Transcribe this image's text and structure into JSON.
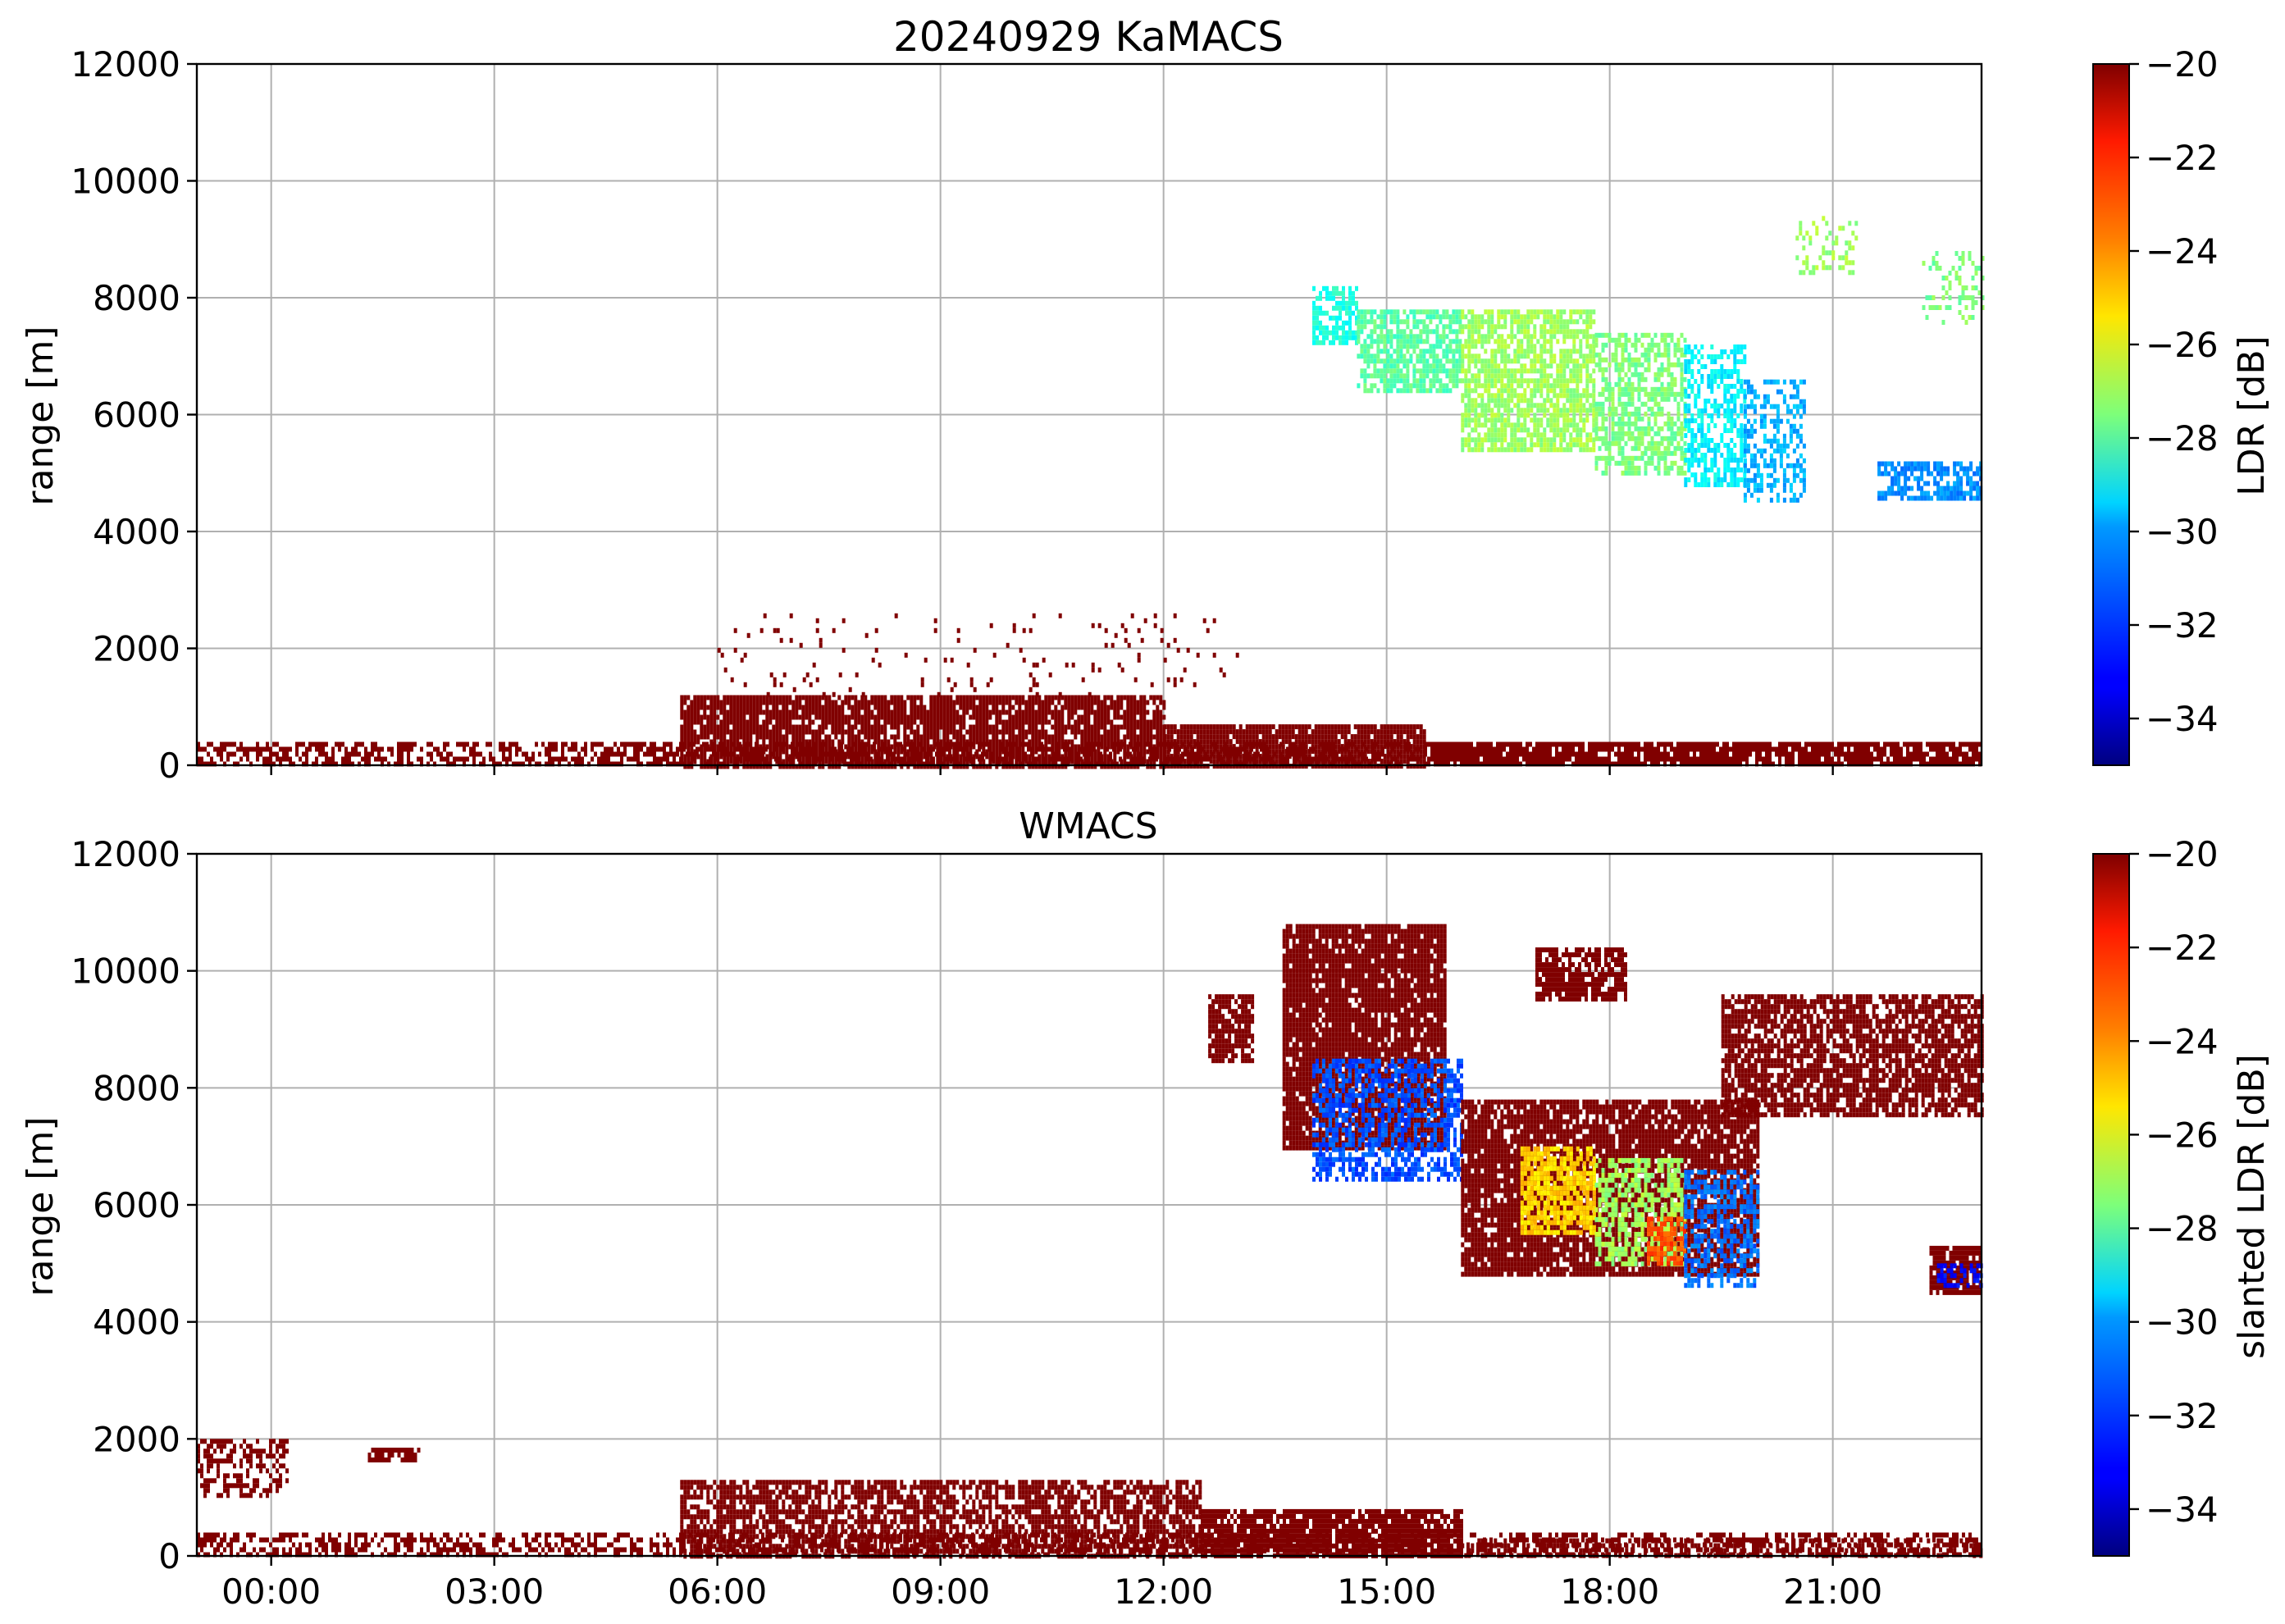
{
  "chart_data": [
    {
      "type": "heatmap",
      "title": "20240929 KaMACS",
      "xlabel": "",
      "ylabel": "range [m]",
      "xlim": [
        "00:00",
        "24:00"
      ],
      "ylim": [
        0,
        12000
      ],
      "grid": true,
      "x_tick_labels": [],
      "y_ticks": [
        0,
        2000,
        4000,
        6000,
        8000,
        10000,
        12000
      ],
      "colorbar": {
        "label": "LDR [dB]",
        "range": [
          -35,
          -20
        ],
        "ticks": [
          -20,
          -22,
          -24,
          -26,
          -28,
          -30,
          -32,
          -34
        ],
        "tick_labels": [
          "−20",
          "−22",
          "−24",
          "−26",
          "−28",
          "−30",
          "−32",
          "−34"
        ],
        "colormap": "jet"
      },
      "regions": [
        {
          "t0": 0.0,
          "t1": 24.0,
          "h0": 0,
          "h1": 400,
          "ldr": -20,
          "density": 0.55
        },
        {
          "t0": 6.5,
          "t1": 13.0,
          "h0": 0,
          "h1": 1200,
          "ldr": -20,
          "density": 0.85
        },
        {
          "t0": 13.0,
          "t1": 16.5,
          "h0": 0,
          "h1": 700,
          "ldr": -20,
          "density": 0.9
        },
        {
          "t0": 16.5,
          "t1": 24.0,
          "h0": 0,
          "h1": 400,
          "ldr": -20,
          "density": 0.7
        },
        {
          "t0": 7.0,
          "t1": 14.0,
          "h0": 1200,
          "h1": 2600,
          "ldr": -20,
          "density": 0.05
        },
        {
          "t0": 15.0,
          "t1": 15.6,
          "h0": 7200,
          "h1": 8200,
          "ldr": -29,
          "density": 0.7
        },
        {
          "t0": 15.6,
          "t1": 17.0,
          "h0": 6400,
          "h1": 7800,
          "ldr": -28,
          "density": 0.7
        },
        {
          "t0": 17.0,
          "t1": 18.8,
          "h0": 5400,
          "h1": 7800,
          "ldr": -27,
          "density": 0.75
        },
        {
          "t0": 18.8,
          "t1": 20.0,
          "h0": 5000,
          "h1": 7400,
          "ldr": -27.5,
          "density": 0.6
        },
        {
          "t0": 20.0,
          "t1": 20.8,
          "h0": 4800,
          "h1": 7200,
          "ldr": -29.5,
          "density": 0.55
        },
        {
          "t0": 20.8,
          "t1": 21.6,
          "h0": 4500,
          "h1": 6600,
          "ldr": -30.5,
          "density": 0.5
        },
        {
          "t0": 22.6,
          "t1": 24.0,
          "h0": 4600,
          "h1": 5200,
          "ldr": -31,
          "density": 0.7
        },
        {
          "t0": 21.5,
          "t1": 22.3,
          "h0": 8400,
          "h1": 9400,
          "ldr": -27,
          "density": 0.3
        },
        {
          "t0": 23.2,
          "t1": 24.0,
          "h0": 7600,
          "h1": 8800,
          "ldr": -27.5,
          "density": 0.2
        }
      ]
    },
    {
      "type": "heatmap",
      "title": "WMACS",
      "xlabel": "",
      "ylabel": "range [m]",
      "xlim": [
        "00:00",
        "24:00"
      ],
      "ylim": [
        0,
        12000
      ],
      "grid": true,
      "x_tick_labels": [
        "00:00",
        "03:00",
        "06:00",
        "09:00",
        "12:00",
        "15:00",
        "18:00",
        "21:00"
      ],
      "y_ticks": [
        0,
        2000,
        4000,
        6000,
        8000,
        10000,
        12000
      ],
      "colorbar": {
        "label": "slanted LDR [dB]",
        "range": [
          -35,
          -20
        ],
        "ticks": [
          -20,
          -22,
          -24,
          -26,
          -28,
          -30,
          -32,
          -34
        ],
        "tick_labels": [
          "−20",
          "−22",
          "−24",
          "−26",
          "−28",
          "−30",
          "−32",
          "−34"
        ],
        "colormap": "jet"
      },
      "regions": [
        {
          "t0": 0.0,
          "t1": 1.2,
          "h0": 1000,
          "h1": 2000,
          "ldr": -20,
          "density": 0.45
        },
        {
          "t0": 2.3,
          "t1": 3.0,
          "h0": 1600,
          "h1": 1850,
          "ldr": -20,
          "density": 0.8
        },
        {
          "t0": 0.0,
          "t1": 24.0,
          "h0": 0,
          "h1": 400,
          "ldr": -20,
          "density": 0.5
        },
        {
          "t0": 6.5,
          "t1": 13.5,
          "h0": 0,
          "h1": 1300,
          "ldr": -20,
          "density": 0.7
        },
        {
          "t0": 13.5,
          "t1": 17.0,
          "h0": 0,
          "h1": 800,
          "ldr": -20,
          "density": 0.85
        },
        {
          "t0": 17.0,
          "t1": 24.0,
          "h0": 0,
          "h1": 300,
          "ldr": -20,
          "density": 0.45
        },
        {
          "t0": 13.6,
          "t1": 14.2,
          "h0": 8500,
          "h1": 9600,
          "ldr": -20,
          "density": 0.85
        },
        {
          "t0": 14.6,
          "t1": 16.8,
          "h0": 7000,
          "h1": 10800,
          "ldr": -20,
          "density": 0.9
        },
        {
          "t0": 15.0,
          "t1": 17.0,
          "h0": 6400,
          "h1": 8500,
          "ldr": -32,
          "density": 0.6
        },
        {
          "t0": 17.0,
          "t1": 21.0,
          "h0": 4800,
          "h1": 7800,
          "ldr": -20,
          "density": 0.85
        },
        {
          "t0": 17.8,
          "t1": 18.8,
          "h0": 5500,
          "h1": 7000,
          "ldr": -25,
          "density": 0.75
        },
        {
          "t0": 18.8,
          "t1": 20.0,
          "h0": 5000,
          "h1": 6800,
          "ldr": -27,
          "density": 0.6
        },
        {
          "t0": 19.5,
          "t1": 20.0,
          "h0": 5000,
          "h1": 5800,
          "ldr": -23,
          "density": 0.7
        },
        {
          "t0": 20.0,
          "t1": 21.0,
          "h0": 4600,
          "h1": 6600,
          "ldr": -31.5,
          "density": 0.55
        },
        {
          "t0": 18.0,
          "t1": 19.2,
          "h0": 9500,
          "h1": 10400,
          "ldr": -20,
          "density": 0.75
        },
        {
          "t0": 20.5,
          "t1": 24.0,
          "h0": 7500,
          "h1": 9600,
          "ldr": -20,
          "density": 0.75
        },
        {
          "t0": 23.3,
          "t1": 24.0,
          "h0": 4500,
          "h1": 5300,
          "ldr": -20,
          "density": 0.9
        },
        {
          "t0": 23.4,
          "t1": 24.0,
          "h0": 4600,
          "h1": 5000,
          "ldr": -33,
          "density": 0.6
        }
      ]
    }
  ]
}
